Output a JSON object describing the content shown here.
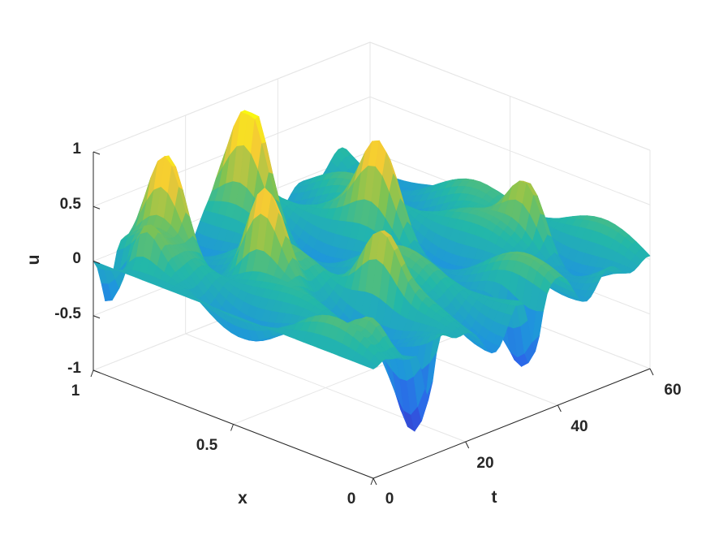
{
  "chart_data": {
    "type": "surface",
    "title": "",
    "xlabel": "x",
    "ylabel": "t",
    "zlabel": "u",
    "xlim": [
      0,
      1
    ],
    "ylim": [
      0,
      60
    ],
    "zlim": [
      -1,
      1
    ],
    "x_ticks": [
      "0",
      "0.5",
      "1"
    ],
    "y_ticks": [
      "0",
      "20",
      "40",
      "60"
    ],
    "z_ticks": [
      "-1",
      "-0.5",
      "0",
      "0.5",
      "1"
    ],
    "grid": true,
    "colormap": "parula",
    "colors": {
      "low": "#3e26a8",
      "mid_low": "#1f8fd8",
      "mid": "#23b8a8",
      "mid_high": "#8cc34a",
      "high": "#f5c836",
      "top": "#f9fb0e",
      "grid": "#e6e6e6",
      "axis": "#262626"
    },
    "initial_condition_t0": "u(x,0) = 0",
    "peak_features": [
      {
        "x": 0.9,
        "t": 3,
        "u": 0.68
      },
      {
        "x": 0.9,
        "t": 10,
        "u": 0.95
      },
      {
        "x": 0.9,
        "t": 28,
        "u": 0.97
      },
      {
        "x": 0.6,
        "t": 13,
        "u": 0.8
      },
      {
        "x": 0.6,
        "t": 38,
        "u": 0.72
      },
      {
        "x": 0.3,
        "t": 20,
        "u": 0.6
      },
      {
        "x": 0.3,
        "t": 52,
        "u": 0.65
      },
      {
        "x": 0.1,
        "t": 6,
        "u": 0.35
      }
    ],
    "trough_features": [
      {
        "x": 0.95,
        "t": 3,
        "u": -0.75
      },
      {
        "x": 0.05,
        "t": 12,
        "u": -0.95
      },
      {
        "x": 0.05,
        "t": 35,
        "u": -0.7
      }
    ]
  }
}
